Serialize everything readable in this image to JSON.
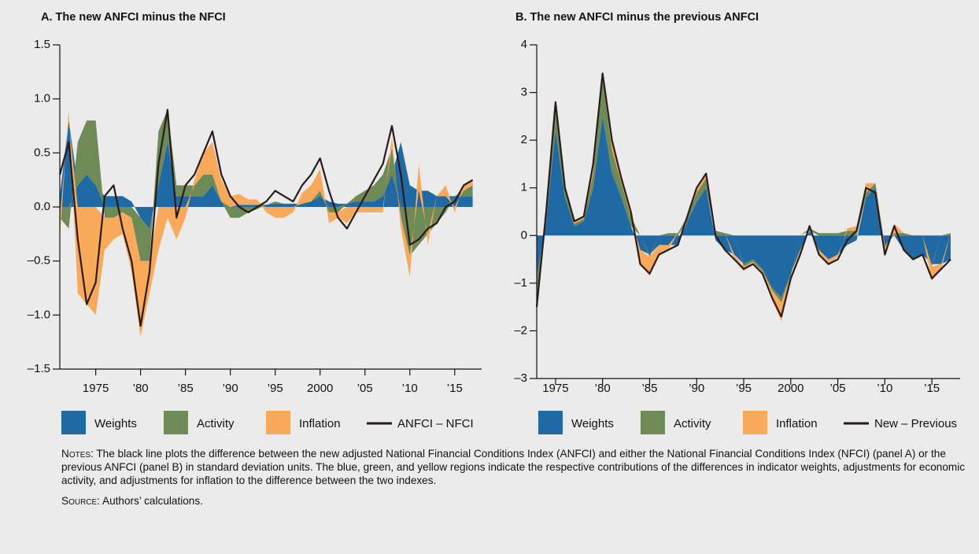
{
  "chart_data": [
    {
      "type": "area",
      "title": "A. The new ANFCI minus the NFCI",
      "x": [
        1971,
        1972,
        1973,
        1974,
        1975,
        1976,
        1977,
        1978,
        1979,
        1980,
        1981,
        1982,
        1983,
        1984,
        1985,
        1986,
        1987,
        1988,
        1989,
        1990,
        1991,
        1992,
        1993,
        1994,
        1995,
        1996,
        1997,
        1998,
        1999,
        2000,
        2001,
        2002,
        2003,
        2004,
        2005,
        2006,
        2007,
        2008,
        2009,
        2010,
        2011,
        2012,
        2013,
        2014,
        2015,
        2016,
        2017
      ],
      "series": [
        {
          "name": "Weights",
          "type": "area",
          "color": "#1f6aa5",
          "values": [
            0.1,
            0.8,
            0.2,
            0.3,
            0.2,
            0.1,
            0.1,
            0.1,
            0.05,
            -0.1,
            -0.2,
            0.2,
            0.6,
            0.1,
            0.1,
            0.1,
            0.1,
            0.2,
            0.05,
            0.0,
            0.02,
            0.02,
            0.02,
            0.02,
            0.03,
            0.03,
            0.03,
            0.03,
            0.05,
            0.1,
            0.05,
            0.03,
            0.03,
            0.05,
            0.05,
            0.05,
            0.1,
            0.3,
            0.6,
            0.2,
            0.15,
            0.15,
            0.1,
            0.1,
            0.1,
            0.1,
            0.1
          ]
        },
        {
          "name": "Activity",
          "type": "area",
          "color": "#6e8a57",
          "values": [
            -0.1,
            -0.2,
            0.4,
            0.5,
            0.6,
            -0.1,
            -0.1,
            -0.05,
            -0.1,
            -0.4,
            -0.3,
            0.5,
            0.3,
            0.1,
            0.1,
            0.1,
            0.2,
            0.1,
            0.0,
            -0.1,
            -0.1,
            -0.05,
            -0.02,
            0.0,
            0.02,
            0.0,
            0.0,
            0.0,
            0.0,
            0.05,
            -0.05,
            -0.05,
            0.0,
            0.05,
            0.1,
            0.15,
            0.2,
            0.25,
            -0.1,
            -0.45,
            -0.35,
            -0.25,
            -0.15,
            -0.05,
            0.0,
            0.05,
            0.1
          ]
        },
        {
          "name": "Inflation",
          "type": "area",
          "color": "#f9a95a",
          "values": [
            -0.2,
            0.1,
            -0.8,
            -0.9,
            -1.0,
            -0.3,
            -0.2,
            -0.2,
            -0.5,
            -0.7,
            -0.3,
            -0.4,
            -0.1,
            -0.3,
            -0.1,
            0.05,
            0.2,
            0.3,
            0.2,
            0.1,
            0.1,
            0.05,
            0.05,
            -0.05,
            -0.1,
            -0.1,
            -0.05,
            0.1,
            0.15,
            0.2,
            -0.1,
            -0.05,
            -0.15,
            -0.05,
            -0.05,
            -0.05,
            -0.05,
            0.1,
            -0.1,
            -0.2,
            0.25,
            -0.1,
            0.0,
            0.1,
            -0.05,
            0.05,
            0.05
          ]
        },
        {
          "name": "ANFCI – NFCI",
          "type": "line",
          "color": "#2b1a1a",
          "values": [
            0.3,
            0.6,
            -0.3,
            -0.9,
            -0.7,
            0.1,
            0.2,
            -0.2,
            -0.5,
            -1.1,
            -0.6,
            0.4,
            0.9,
            -0.1,
            0.2,
            0.3,
            0.5,
            0.7,
            0.3,
            0.1,
            0.0,
            -0.05,
            0.0,
            0.05,
            0.15,
            0.1,
            0.05,
            0.2,
            0.3,
            0.45,
            0.15,
            -0.1,
            -0.2,
            -0.05,
            0.1,
            0.25,
            0.4,
            0.75,
            0.3,
            -0.35,
            -0.3,
            -0.2,
            -0.15,
            0.0,
            0.05,
            0.2,
            0.25
          ]
        }
      ],
      "xlim": [
        1971,
        2018
      ],
      "xticks": [
        1975,
        {
          "value": 1980,
          "label": "’80"
        },
        {
          "value": 1985,
          "label": "’85"
        },
        {
          "value": 1990,
          "label": "’90"
        },
        {
          "value": 1995,
          "label": "’95"
        },
        2000,
        {
          "value": 2005,
          "label": "’05"
        },
        {
          "value": 2010,
          "label": "’10"
        },
        {
          "value": 2015,
          "label": "’15"
        }
      ],
      "ylim": [
        -1.5,
        1.5
      ],
      "yticks": [
        1.5,
        {
          "value": 1,
          "label": "1.0"
        },
        0.5,
        {
          "value": 0,
          "label": "0.0"
        },
        {
          "value": -0.5,
          "label": "–0.5"
        },
        {
          "value": -1,
          "label": "–1.0"
        },
        {
          "value": -1.5,
          "label": "–1.5"
        }
      ]
    },
    {
      "type": "area",
      "title": "B. The new ANFCI minus the previous ANFCI",
      "x": [
        1973,
        1974,
        1975,
        1976,
        1977,
        1978,
        1979,
        1980,
        1981,
        1982,
        1983,
        1984,
        1985,
        1986,
        1987,
        1988,
        1989,
        1990,
        1991,
        1992,
        1993,
        1994,
        1995,
        1996,
        1997,
        1998,
        1999,
        2000,
        2001,
        2002,
        2003,
        2004,
        2005,
        2006,
        2007,
        2008,
        2009,
        2010,
        2011,
        2012,
        2013,
        2014,
        2015,
        2016,
        2017
      ],
      "series": [
        {
          "name": "Weights",
          "type": "area",
          "color": "#1f6aa5",
          "values": [
            -0.9,
            0.3,
            2.2,
            0.8,
            0.2,
            0.3,
            1.0,
            2.5,
            1.3,
            0.8,
            0.2,
            -0.3,
            -0.4,
            -0.2,
            -0.2,
            -0.2,
            0.3,
            0.7,
            1.0,
            -0.1,
            -0.3,
            -0.4,
            -0.6,
            -0.5,
            -0.7,
            -1.1,
            -1.3,
            -0.8,
            -0.3,
            0.1,
            -0.3,
            -0.5,
            -0.4,
            -0.2,
            -0.1,
            0.8,
            1.0,
            -0.2,
            0.0,
            -0.3,
            -0.5,
            -0.4,
            -0.6,
            -0.6,
            -0.5
          ]
        },
        {
          "name": "Activity",
          "type": "area",
          "color": "#6e8a57",
          "values": [
            -0.4,
            0.1,
            0.5,
            0.2,
            0.05,
            0.05,
            0.3,
            0.8,
            0.5,
            0.3,
            0.2,
            0.0,
            -0.05,
            0.0,
            0.05,
            0.05,
            0.1,
            0.2,
            0.2,
            0.1,
            0.05,
            0.0,
            -0.05,
            -0.05,
            -0.05,
            -0.05,
            -0.1,
            -0.05,
            0.0,
            0.05,
            0.05,
            0.05,
            0.05,
            0.1,
            0.1,
            0.1,
            0.1,
            -0.05,
            0.05,
            0.05,
            0.0,
            0.0,
            -0.05,
            0.0,
            0.05
          ]
        },
        {
          "name": "Inflation",
          "type": "area",
          "color": "#f9a95a",
          "values": [
            -0.2,
            0.1,
            0.1,
            0.0,
            0.05,
            0.05,
            0.2,
            0.1,
            0.2,
            0.1,
            0.1,
            -0.3,
            -0.4,
            -0.2,
            -0.1,
            0.0,
            0.0,
            0.1,
            0.1,
            0.0,
            0.0,
            -0.1,
            -0.1,
            -0.05,
            -0.05,
            -0.2,
            -0.4,
            -0.1,
            -0.05,
            0.05,
            -0.1,
            -0.1,
            -0.05,
            0.05,
            0.1,
            0.2,
            0.0,
            -0.2,
            0.2,
            0.0,
            0.0,
            0.0,
            -0.3,
            -0.1,
            0.0
          ]
        },
        {
          "name": "New – Previous",
          "type": "line",
          "color": "#2b1a1a",
          "values": [
            -1.5,
            0.5,
            2.8,
            1.0,
            0.3,
            0.4,
            1.5,
            3.4,
            2.0,
            1.2,
            0.5,
            -0.6,
            -0.8,
            -0.4,
            -0.3,
            -0.2,
            0.4,
            1.0,
            1.3,
            0.0,
            -0.3,
            -0.5,
            -0.7,
            -0.6,
            -0.8,
            -1.3,
            -1.7,
            -0.9,
            -0.4,
            0.2,
            -0.4,
            -0.6,
            -0.5,
            -0.1,
            0.1,
            1.0,
            0.9,
            -0.4,
            0.2,
            -0.3,
            -0.5,
            -0.4,
            -0.9,
            -0.7,
            -0.5
          ]
        }
      ],
      "xlim": [
        1973,
        2018
      ],
      "xticks": [
        1975,
        {
          "value": 1980,
          "label": "’80"
        },
        {
          "value": 1985,
          "label": "’85"
        },
        {
          "value": 1990,
          "label": "’90"
        },
        {
          "value": 1995,
          "label": "’95"
        },
        2000,
        {
          "value": 2005,
          "label": "’05"
        },
        {
          "value": 2010,
          "label": "’10"
        },
        {
          "value": 2015,
          "label": "’15"
        }
      ],
      "ylim": [
        -3,
        4
      ],
      "yticks": [
        4,
        3,
        2,
        1,
        0,
        {
          "value": -1,
          "label": "–1"
        },
        {
          "value": -2,
          "label": "–2"
        },
        {
          "value": -3,
          "label": "–3"
        }
      ]
    }
  ],
  "notes": {
    "label": "Notes:",
    "text": "The black line plots the difference between the new adjusted National Financial Conditions Index (ANFCI) and either the National Financial Conditions Index (NFCI) (panel A) or the previous ANFCI (panel B) in standard deviation units. The blue, green, and yellow regions indicate the respective contributions of the differences in indicator weights, adjustments for economic activity, and adjustments for inflation to the difference between the two indexes."
  },
  "source": {
    "label": "Source:",
    "text": "Authors’ calculations."
  }
}
